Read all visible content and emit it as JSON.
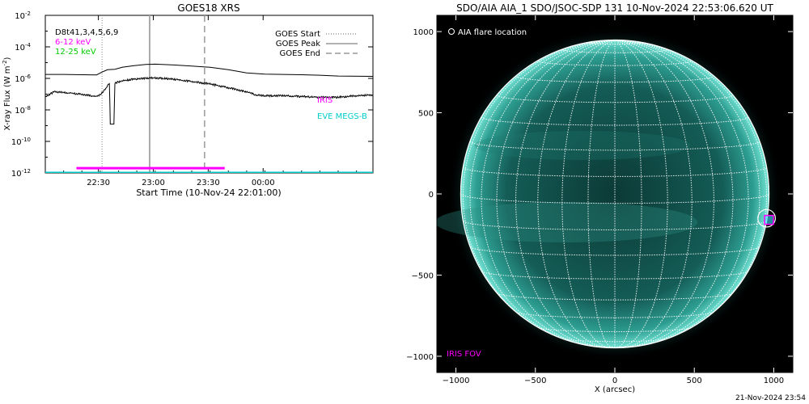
{
  "chart_data": [
    {
      "type": "line",
      "title": "GOES18 XRS",
      "xlabel": "Start Time (10-Nov-24 22:01:00)",
      "ylabel": "X-ray Flux (W m",
      "ylabel_sup": "-2",
      "ylabel_close": ")",
      "xlim_minutes": [
        0,
        179
      ],
      "xticks": [
        {
          "label": "22:30",
          "minute": 29
        },
        {
          "label": "23:00",
          "minute": 59
        },
        {
          "label": "23:30",
          "minute": 89
        },
        {
          "label": "00:00",
          "minute": 119
        }
      ],
      "yscale": "log",
      "ylim_exp": [
        -12,
        -2
      ],
      "yticks": [
        {
          "base": "10",
          "exp": "-12",
          "value_exp": -12
        },
        {
          "base": "10",
          "exp": "-10",
          "value_exp": -10
        },
        {
          "base": "10",
          "exp": "-8",
          "value_exp": -8
        },
        {
          "base": "10",
          "exp": "-6",
          "value_exp": -6
        },
        {
          "base": "10",
          "exp": "-4",
          "value_exp": -4
        },
        {
          "base": "10",
          "exp": "-2",
          "value_exp": -2
        }
      ],
      "inset_labels": [
        {
          "text": "D8t41,3,4,5,6,9",
          "color": "#000000"
        },
        {
          "text": "6-12 keV",
          "color": "#ff00ff"
        },
        {
          "text": "12-25 keV",
          "color": "#00cc00"
        }
      ],
      "legend": [
        {
          "label": "GOES Start",
          "style": "dotted"
        },
        {
          "label": "GOES Peak",
          "style": "solid"
        },
        {
          "label": "GOES End",
          "style": "dashed"
        }
      ],
      "markers": {
        "start_minute": 31,
        "peak_minute": 57,
        "end_minute": 87
      },
      "series": [
        {
          "name": "",
          "color": "#000000",
          "points": [
            [
              0,
              -5.75
            ],
            [
              10,
              -5.75
            ],
            [
              20,
              -5.77
            ],
            [
              28,
              -5.78
            ],
            [
              31,
              -5.6
            ],
            [
              34,
              -5.45
            ],
            [
              38,
              -5.42
            ],
            [
              42,
              -5.3
            ],
            [
              48,
              -5.2
            ],
            [
              55,
              -5.12
            ],
            [
              60,
              -5.1
            ],
            [
              70,
              -5.15
            ],
            [
              80,
              -5.22
            ],
            [
              90,
              -5.3
            ],
            [
              100,
              -5.45
            ],
            [
              110,
              -5.65
            ],
            [
              120,
              -5.73
            ],
            [
              130,
              -5.75
            ],
            [
              140,
              -5.77
            ],
            [
              150,
              -5.8
            ],
            [
              160,
              -5.85
            ],
            [
              179,
              -5.87
            ]
          ]
        },
        {
          "name": "",
          "color": "#000000",
          "noisy": true,
          "points": [
            [
              0,
              -7.15
            ],
            [
              5,
              -6.85
            ],
            [
              10,
              -6.9
            ],
            [
              15,
              -6.95
            ],
            [
              20,
              -7.0
            ],
            [
              25,
              -7.1
            ],
            [
              28,
              -7.15
            ],
            [
              30,
              -7.05
            ],
            [
              32,
              -6.8
            ],
            [
              34,
              -6.5
            ],
            [
              35,
              -6.3
            ],
            [
              35.5,
              -8.9
            ],
            [
              37.5,
              -8.9
            ],
            [
              38,
              -6.3
            ],
            [
              42,
              -6.15
            ],
            [
              48,
              -6.05
            ],
            [
              55,
              -5.98
            ],
            [
              60,
              -5.97
            ],
            [
              70,
              -6.05
            ],
            [
              80,
              -6.2
            ],
            [
              90,
              -6.35
            ],
            [
              100,
              -6.6
            ],
            [
              110,
              -6.85
            ],
            [
              115,
              -7.05
            ],
            [
              120,
              -7.1
            ],
            [
              130,
              -7.1
            ],
            [
              140,
              -7.15
            ],
            [
              150,
              -7.2
            ],
            [
              160,
              -7.2
            ],
            [
              170,
              -7.1
            ],
            [
              179,
              -7.05
            ]
          ]
        }
      ],
      "bars": [
        {
          "color": "#ff00ff",
          "start_minute": 17,
          "end_minute": 98,
          "value_exp": -11.7
        },
        {
          "color": "#00cccc",
          "start_minute": 0,
          "end_minute": 179,
          "value_exp": -12
        }
      ],
      "side_labels": [
        {
          "text": "IRIS",
          "color": "#ff00ff"
        },
        {
          "text": "EVE MEGS-B",
          "color": "#00cccc"
        }
      ]
    },
    {
      "type": "scatter",
      "title": "SDO/AIA AIA_1 SDO/JSOC-SDP 131 10-Nov-2024 22:53:06.620 UT",
      "xlabel": "X (arcsec)",
      "ylabel": "",
      "xlim": [
        -1120,
        1120
      ],
      "ylim": [
        -1100,
        1100
      ],
      "xticks": [
        -1000,
        -500,
        0,
        500,
        1000
      ],
      "yticks": [
        -1000,
        -500,
        0,
        500,
        1000
      ],
      "tick_labels_x": [
        "−1000",
        "−500",
        "0",
        "500",
        "1000"
      ],
      "tick_labels_y": [
        "−1000",
        "−500",
        "0",
        "500",
        "1000"
      ],
      "solar_radius_arcsec": 970,
      "grid_step_deg": 10,
      "b0_deg": 3.5,
      "flare_marker": {
        "x": 955,
        "y": -150,
        "radius_arcsec": 55,
        "symbol_label": "AIA flare location"
      },
      "iris_fov": {
        "x": 970,
        "y": -160,
        "half_size_arcsec": 28,
        "label": "IRIS FOV",
        "color": "#ff00ff"
      },
      "colors": {
        "background": "#000000",
        "disk": "#0e4a45",
        "limb": "#5fd6c8",
        "grid": "#ffffff",
        "frame": "#000000"
      }
    }
  ],
  "footer": {
    "timestamp": "21-Nov-2024 23:54"
  }
}
